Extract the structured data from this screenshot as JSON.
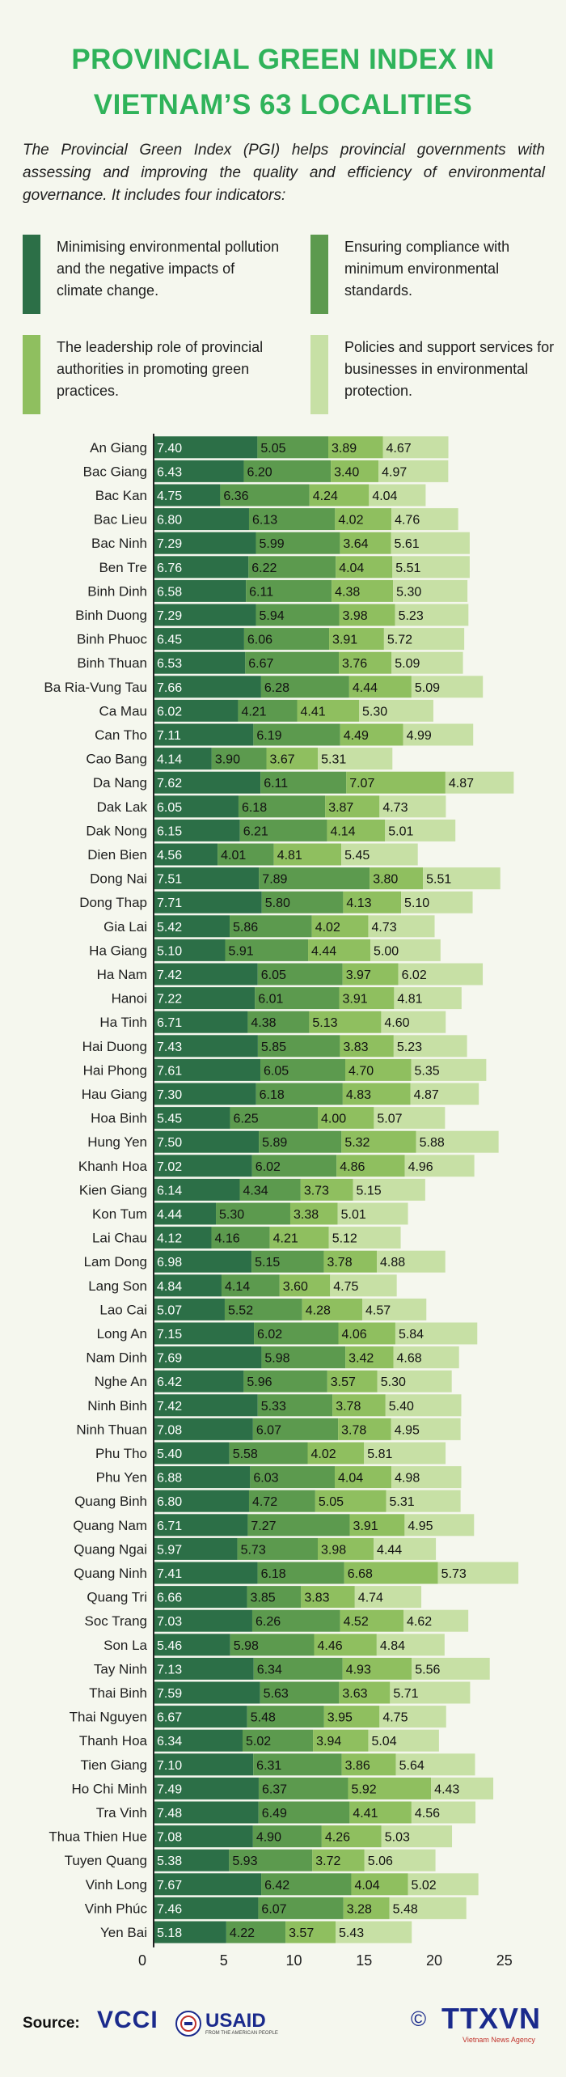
{
  "title": "PROVINCIAL GREEN INDEX IN VIETNAM’S 63 LOCALITIES",
  "intro": "The Provincial Green Index (PGI) helps provincial governments with assessing and improving the quality and efficiency of environmental governance. It includes four indicators:",
  "legend": [
    {
      "label": "Minimising environmental pollution and the negative impacts of climate change.",
      "color": "#2c6f47"
    },
    {
      "label": "Ensuring compliance with minimum environmental standards.",
      "color": "#5c9a4e"
    },
    {
      "label": "The leadership role of provincial authorities in promoting green practices.",
      "color": "#8fbf5f"
    },
    {
      "label": "Policies and support services for businesses in environmental protection.",
      "color": "#c7e0a5"
    }
  ],
  "source": {
    "label": "Source:",
    "logos": [
      "VCCI",
      "USAID",
      "TTXVN"
    ],
    "usaid_tagline": "FROM THE AMERICAN PEOPLE",
    "copyright_symbol": "©",
    "ttxvn_tagline": "Vietnam News Agency"
  },
  "chart_data": {
    "type": "bar",
    "orientation": "horizontal",
    "stacked": true,
    "xlim": [
      0,
      25
    ],
    "xticks": [
      "0",
      "5",
      "10",
      "15",
      "20",
      "25"
    ],
    "categories": [
      "An Giang",
      "Bac Giang",
      "Bac Kan",
      "Bac Lieu",
      "Bac Ninh",
      "Ben Tre",
      "Binh Dinh",
      "Binh Duong",
      "Binh Phuoc",
      "Binh Thuan",
      "Ba Ria-Vung Tau",
      "Ca Mau",
      "Can Tho",
      "Cao Bang",
      "Da Nang",
      "Dak Lak",
      "Dak Nong",
      "Dien Bien",
      "Dong Nai",
      "Dong Thap",
      "Gia Lai",
      "Ha Giang",
      "Ha Nam",
      "Hanoi",
      "Ha Tinh",
      "Hai Duong",
      "Hai Phong",
      "Hau Giang",
      "Hoa Binh",
      "Hung Yen",
      "Khanh Hoa",
      "Kien Giang",
      "Kon Tum",
      "Lai Chau",
      "Lam Dong",
      "Lang Son",
      "Lao Cai",
      "Long An",
      "Nam Dinh",
      "Nghe An",
      "Ninh Binh",
      "Ninh Thuan",
      "Phu Tho",
      "Phu Yen",
      "Quang Binh",
      "Quang Nam",
      "Quang Ngai",
      "Quang Ninh",
      "Quang Tri",
      "Soc Trang",
      "Son La",
      "Tay Ninh",
      "Thai Binh",
      "Thai Nguyen",
      "Thanh Hoa",
      "Tien Giang",
      "Ho Chi Minh",
      "Tra Vinh",
      "Thua Thien Hue",
      "Tuyen Quang",
      "Vinh Long",
      "Vinh Phúc",
      "Yen Bai"
    ],
    "series": [
      {
        "values": [
          7.4,
          6.43,
          4.75,
          6.8,
          7.29,
          6.76,
          6.58,
          7.29,
          6.45,
          6.53,
          7.66,
          6.02,
          7.11,
          4.14,
          7.62,
          6.05,
          6.15,
          4.56,
          7.51,
          7.71,
          5.42,
          5.1,
          7.42,
          7.22,
          6.71,
          7.43,
          7.61,
          7.3,
          5.45,
          7.5,
          7.02,
          6.14,
          4.44,
          4.12,
          6.98,
          4.84,
          5.07,
          7.15,
          7.69,
          6.42,
          7.42,
          7.08,
          5.4,
          6.88,
          6.8,
          6.71,
          5.97,
          7.41,
          6.66,
          7.03,
          5.46,
          7.13,
          7.59,
          6.67,
          6.34,
          7.1,
          7.49,
          7.48,
          7.08,
          5.38,
          7.67,
          7.46,
          5.18
        ]
      },
      {
        "values": [
          5.05,
          6.2,
          6.36,
          6.13,
          5.99,
          6.22,
          6.11,
          5.94,
          6.06,
          6.67,
          6.28,
          4.21,
          6.19,
          3.9,
          6.11,
          6.18,
          6.21,
          4.01,
          7.89,
          5.8,
          5.86,
          5.91,
          6.05,
          6.01,
          4.38,
          5.85,
          6.05,
          6.18,
          6.25,
          5.89,
          6.02,
          4.34,
          5.3,
          4.16,
          5.15,
          4.14,
          5.52,
          6.02,
          5.98,
          5.96,
          5.33,
          6.07,
          5.58,
          6.03,
          4.72,
          7.27,
          5.73,
          6.18,
          3.85,
          6.26,
          5.98,
          6.34,
          5.63,
          5.48,
          5.02,
          6.31,
          6.37,
          6.49,
          4.9,
          5.93,
          6.42,
          6.07,
          4.22
        ]
      },
      {
        "values": [
          3.89,
          3.4,
          4.24,
          4.02,
          3.64,
          4.04,
          4.38,
          3.98,
          3.91,
          3.76,
          4.44,
          4.41,
          4.49,
          3.67,
          7.07,
          3.87,
          4.14,
          4.81,
          3.8,
          4.13,
          4.02,
          4.44,
          3.97,
          3.91,
          5.13,
          3.83,
          4.7,
          4.83,
          4.0,
          5.32,
          4.86,
          3.73,
          3.38,
          4.21,
          3.78,
          3.6,
          4.28,
          4.06,
          3.42,
          3.57,
          3.78,
          3.78,
          4.02,
          4.04,
          5.05,
          3.91,
          3.98,
          6.68,
          3.83,
          4.52,
          4.46,
          4.93,
          3.63,
          3.95,
          3.94,
          3.86,
          5.92,
          4.41,
          4.26,
          3.72,
          4.04,
          3.28,
          3.57
        ]
      },
      {
        "values": [
          4.67,
          4.97,
          4.04,
          4.76,
          5.61,
          5.51,
          5.3,
          5.23,
          5.72,
          5.09,
          5.09,
          5.3,
          4.99,
          5.31,
          4.87,
          4.73,
          5.01,
          5.45,
          5.51,
          5.1,
          4.73,
          5.0,
          6.02,
          4.81,
          4.6,
          5.23,
          5.35,
          4.87,
          5.07,
          5.88,
          4.96,
          5.15,
          5.01,
          5.12,
          4.88,
          4.75,
          4.57,
          5.84,
          4.68,
          5.3,
          5.4,
          4.95,
          5.81,
          4.98,
          5.31,
          4.95,
          4.44,
          5.73,
          4.74,
          4.62,
          4.84,
          5.56,
          5.71,
          4.75,
          5.04,
          5.64,
          4.43,
          4.56,
          5.03,
          5.06,
          5.02,
          5.48,
          5.43
        ]
      }
    ]
  }
}
